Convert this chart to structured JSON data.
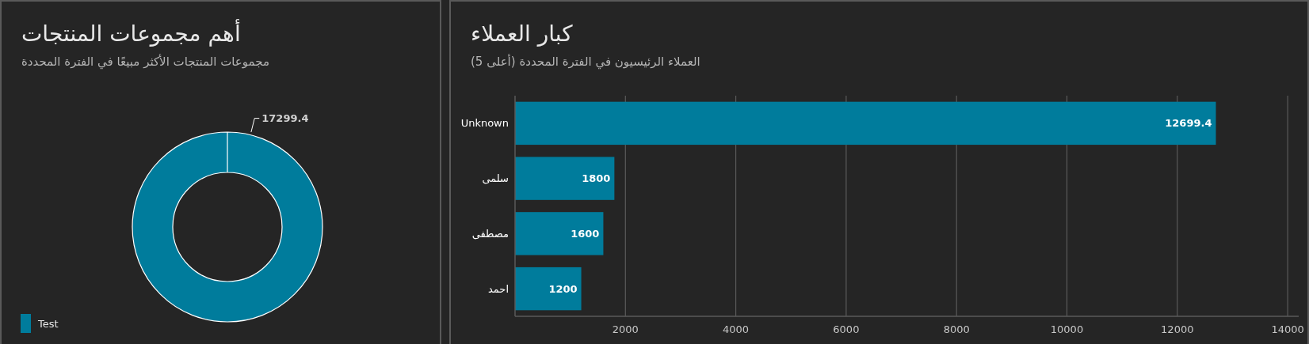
{
  "chart_data": [
    {
      "type": "donut",
      "title": "أهم مجموعات المنتجات",
      "subtitle": "مجموعات المنتجات الأكثر مبيعًا في الفترة المحددة",
      "categories": [
        "Test"
      ],
      "values": [
        17299.4
      ],
      "colors": [
        "#007c9c"
      ],
      "data_labels": true,
      "legend": "bottom left"
    },
    {
      "type": "bar",
      "orientation": "horizontal",
      "title": "كبار العملاء",
      "subtitle": "العملاء الرئيسيون في الفترة المحددة (أعلى 5)",
      "categories": [
        "Unknown",
        "سلمى",
        "مصطفى",
        "احمد"
      ],
      "values": [
        12699.4,
        1800,
        1600,
        1200
      ],
      "color": "#007c9c",
      "xlim": [
        0,
        14200
      ],
      "xticks": [
        2000,
        4000,
        6000,
        8000,
        10000,
        12000,
        14000
      ],
      "grid": "x",
      "data_labels": true
    }
  ]
}
